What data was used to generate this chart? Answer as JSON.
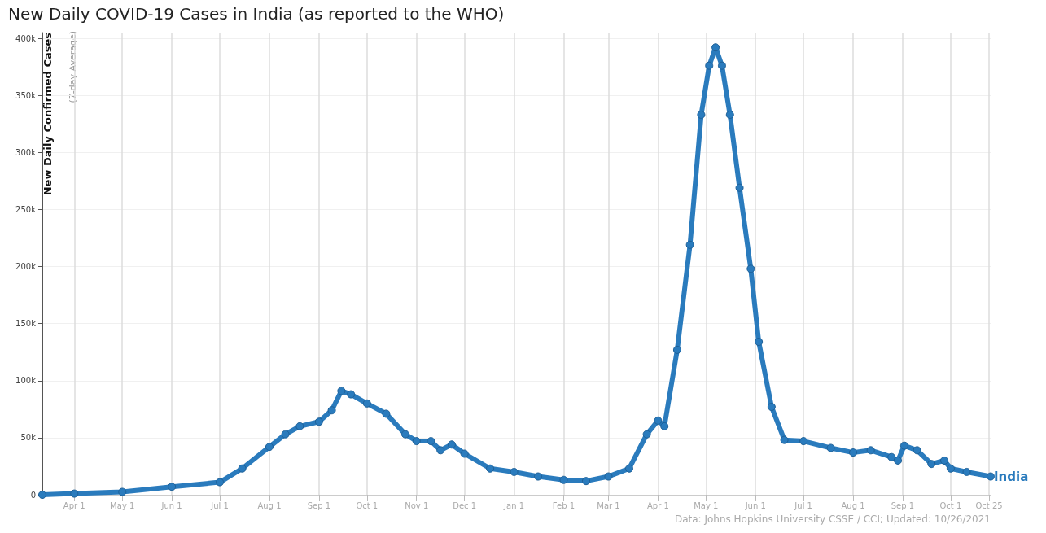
{
  "chart_data": {
    "type": "line",
    "title": "New Daily COVID-19 Cases in India (as reported to the WHO)",
    "ylabel": "New Daily Confirmed Cases",
    "annotations": [
      "(7-day Average)",
      "Data: Johns Hopkins University CSSE / CCI; Updated: 10/26/2021"
    ],
    "series": [
      {
        "name": "India",
        "color": "#2a7bbd",
        "x": [
          "2020-03-12",
          "2020-04-01",
          "2020-05-01",
          "2020-06-01",
          "2020-07-01",
          "2020-07-15",
          "2020-08-01",
          "2020-08-11",
          "2020-08-20",
          "2020-09-01",
          "2020-09-09",
          "2020-09-15",
          "2020-09-21",
          "2020-10-01",
          "2020-10-13",
          "2020-10-25",
          "2020-11-01",
          "2020-11-10",
          "2020-11-16",
          "2020-11-23",
          "2020-12-01",
          "2020-12-17",
          "2021-01-01",
          "2021-01-16",
          "2021-02-01",
          "2021-02-15",
          "2021-03-01",
          "2021-03-14",
          "2021-03-25",
          "2021-04-01",
          "2021-04-05",
          "2021-04-13",
          "2021-04-21",
          "2021-04-28",
          "2021-05-03",
          "2021-05-07",
          "2021-05-11",
          "2021-05-16",
          "2021-05-22",
          "2021-05-29",
          "2021-06-03",
          "2021-06-11",
          "2021-06-19",
          "2021-07-01",
          "2021-07-18",
          "2021-08-01",
          "2021-08-12",
          "2021-08-25",
          "2021-08-29",
          "2021-09-02",
          "2021-09-10",
          "2021-09-19",
          "2021-09-27",
          "2021-10-01",
          "2021-10-11",
          "2021-10-26"
        ],
        "values": [
          0,
          1000,
          2500,
          7000,
          11000,
          23000,
          42000,
          53000,
          60000,
          64000,
          74000,
          91000,
          88000,
          80000,
          71000,
          53000,
          47000,
          47000,
          39000,
          44000,
          36000,
          23000,
          20000,
          16000,
          13000,
          12000,
          16000,
          23000,
          53000,
          65000,
          60000,
          127000,
          219000,
          333000,
          376000,
          392000,
          376000,
          333000,
          269000,
          198000,
          134000,
          77000,
          48000,
          47000,
          41000,
          37000,
          39000,
          33000,
          30000,
          43000,
          39000,
          27000,
          30000,
          23000,
          20000,
          16000
        ]
      }
    ],
    "xlim": [
      "2020-03-12",
      "2021-10-26"
    ],
    "xticks": [
      {
        "value": "2020-04-01",
        "label": "Apr 1"
      },
      {
        "value": "2020-05-01",
        "label": "May 1"
      },
      {
        "value": "2020-06-01",
        "label": "Jun 1"
      },
      {
        "value": "2020-07-01",
        "label": "Jul 1"
      },
      {
        "value": "2020-08-01",
        "label": "Aug 1"
      },
      {
        "value": "2020-09-01",
        "label": "Sep 1"
      },
      {
        "value": "2020-10-01",
        "label": "Oct 1"
      },
      {
        "value": "2020-11-01",
        "label": "Nov 1"
      },
      {
        "value": "2020-12-01",
        "label": "Dec 1"
      },
      {
        "value": "2021-01-01",
        "label": "Jan 1"
      },
      {
        "value": "2021-02-01",
        "label": "Feb 1"
      },
      {
        "value": "2021-03-01",
        "label": "Mar 1"
      },
      {
        "value": "2021-04-01",
        "label": "Apr 1"
      },
      {
        "value": "2021-05-01",
        "label": "May 1"
      },
      {
        "value": "2021-06-01",
        "label": "Jun 1"
      },
      {
        "value": "2021-07-01",
        "label": "Jul 1"
      },
      {
        "value": "2021-08-01",
        "label": "Aug 1"
      },
      {
        "value": "2021-09-01",
        "label": "Sep 1"
      },
      {
        "value": "2021-10-01",
        "label": "Oct 1"
      },
      {
        "value": "2021-10-25",
        "label": "Oct 25"
      }
    ],
    "ylim": [
      0,
      405000
    ],
    "yticks": [
      0,
      {
        "value": 50000,
        "label": "50k"
      },
      {
        "value": 100000,
        "label": "100k"
      },
      {
        "value": 150000,
        "label": "150k"
      },
      {
        "value": 200000,
        "label": "200k"
      },
      {
        "value": 250000,
        "label": "250k"
      },
      {
        "value": 300000,
        "label": "300k"
      },
      {
        "value": 350000,
        "label": "350k"
      },
      {
        "value": 400000,
        "label": "400k"
      }
    ],
    "grid": true,
    "marker": "circle",
    "line_style": "solid",
    "legend": false
  }
}
